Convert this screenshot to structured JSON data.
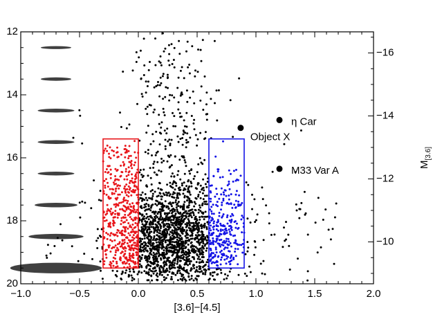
{
  "chart_data": {
    "type": "scatter",
    "title": "",
    "xlabel": "[3.6]−[4.5]",
    "ylabel": "",
    "y2label": "M",
    "y2label_sub": "[3.6]",
    "xlim": [
      -1.0,
      2.0
    ],
    "ylim": [
      20,
      12
    ],
    "y2lim": [
      -8.67,
      -16.67
    ],
    "grid": false,
    "x_ticks": [
      {
        "value": -1.0,
        "label": "−1.0"
      },
      {
        "value": -0.5,
        "label": "−0.5"
      },
      {
        "value": 0.0,
        "label": "0.0"
      },
      {
        "value": 0.5,
        "label": "0.5"
      },
      {
        "value": 1.0,
        "label": "1.0"
      },
      {
        "value": 1.5,
        "label": "1.5"
      },
      {
        "value": 2.0,
        "label": "2.0"
      }
    ],
    "y_ticks": [
      {
        "value": 12,
        "label": "12"
      },
      {
        "value": 14,
        "label": "14"
      },
      {
        "value": 16,
        "label": "16"
      },
      {
        "value": 18,
        "label": "18"
      },
      {
        "value": 20,
        "label": "20"
      }
    ],
    "y2_ticks": [
      {
        "value": -16,
        "label": "−16"
      },
      {
        "value": -14,
        "label": "−14"
      },
      {
        "value": -12,
        "label": "−12"
      },
      {
        "value": -10,
        "label": "−10"
      }
    ],
    "colors": {
      "field": "#000000",
      "red_region": "#e8161b",
      "blue_region": "#1414e6",
      "error_ellipse": "#404040"
    },
    "regions": [
      {
        "color": "red",
        "x_range": [
          -0.3,
          0.0
        ],
        "y_range": [
          15.4,
          19.5
        ]
      },
      {
        "color": "blue",
        "x_range": [
          0.6,
          0.9
        ],
        "y_range": [
          15.4,
          19.5
        ]
      }
    ],
    "field_population": {
      "color_center": 0.28,
      "color_spread": 0.28,
      "mag_range": [
        12.0,
        19.9
      ],
      "mag_peak": 18.6
    },
    "error_bars": [
      {
        "x": -0.7,
        "y": 12.5,
        "dx": 0.05,
        "dy": 0.04
      },
      {
        "x": -0.7,
        "y": 13.5,
        "dx": 0.05,
        "dy": 0.045
      },
      {
        "x": -0.7,
        "y": 14.5,
        "dx": 0.06,
        "dy": 0.05
      },
      {
        "x": -0.7,
        "y": 15.5,
        "dx": 0.06,
        "dy": 0.05
      },
      {
        "x": -0.7,
        "y": 16.5,
        "dx": 0.06,
        "dy": 0.05
      },
      {
        "x": -0.7,
        "y": 17.5,
        "dx": 0.07,
        "dy": 0.06
      },
      {
        "x": -0.7,
        "y": 18.5,
        "dx": 0.09,
        "dy": 0.07
      },
      {
        "x": -0.7,
        "y": 19.5,
        "dx": 0.15,
        "dy": 0.14
      }
    ],
    "labeled_objects": [
      {
        "name": "η Car",
        "x": 1.2,
        "y": 14.8
      },
      {
        "name": "Object X",
        "x": 0.87,
        "y": 15.05
      },
      {
        "name": "M33 Var A",
        "x": 1.2,
        "y": 16.35
      }
    ]
  }
}
